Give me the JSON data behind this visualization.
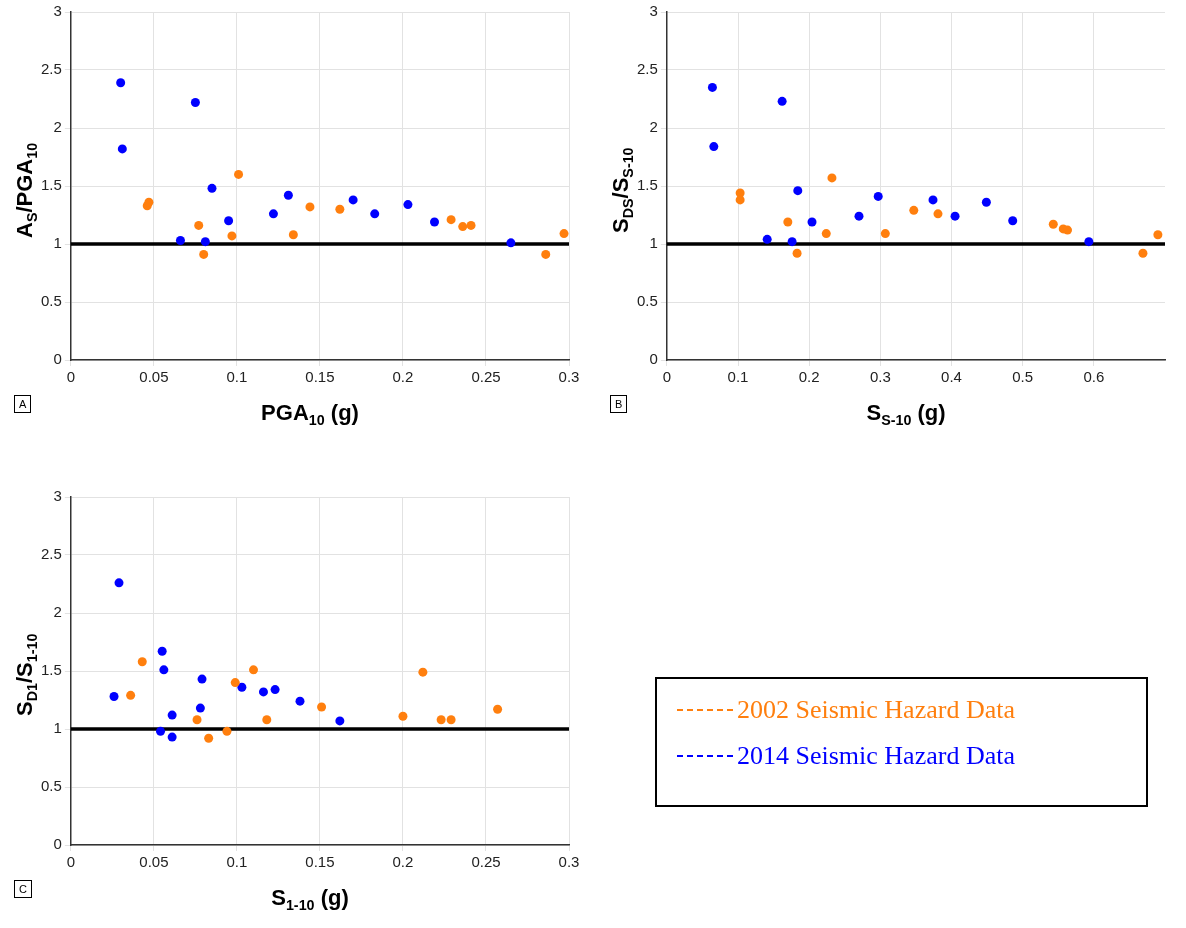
{
  "chart_data": [
    {
      "type": "scatter",
      "xlabel": "PGA$_{10}$ (g)",
      "ylabel": "A$_{S}$/PGA$_{10}$",
      "annotations": [
        "A"
      ],
      "xlim": [
        0,
        0.3
      ],
      "xticks": [
        0,
        0.05,
        0.1,
        0.15,
        0.2,
        0.25,
        0.3
      ],
      "ylim": [
        0,
        3
      ],
      "yticks": [
        0,
        0.5,
        1,
        1.5,
        2,
        2.5,
        3
      ],
      "grid": true,
      "marker": "circle",
      "ref_lines": [
        {
          "axis": "y",
          "value": 1,
          "color": "#000000"
        }
      ],
      "series": [
        {
          "color": "#0000ff",
          "x": [
            0.03,
            0.031,
            0.075,
            0.066,
            0.081,
            0.085,
            0.095,
            0.122,
            0.131,
            0.17,
            0.183,
            0.203,
            0.219,
            0.265
          ],
          "values": [
            2.39,
            1.82,
            2.22,
            1.03,
            1.02,
            1.48,
            1.2,
            1.26,
            1.42,
            1.38,
            1.26,
            1.34,
            1.19,
            1.01
          ]
        },
        {
          "color": "#ff7f0e",
          "x": [
            0.046,
            0.047,
            0.077,
            0.08,
            0.097,
            0.101,
            0.134,
            0.144,
            0.162,
            0.229,
            0.236,
            0.241,
            0.286,
            0.297
          ],
          "values": [
            1.33,
            1.36,
            1.16,
            0.91,
            1.07,
            1.6,
            1.08,
            1.32,
            1.3,
            1.21,
            1.15,
            1.16,
            0.91,
            1.09
          ]
        }
      ]
    },
    {
      "type": "scatter",
      "xlabel": "S$_{S-10}$ (g)",
      "ylabel": "S$_{DS}$/S$_{S-10}$",
      "annotations": [
        "B"
      ],
      "xlim": [
        0,
        0.7
      ],
      "xticks": [
        0,
        0.1,
        0.2,
        0.3,
        0.4,
        0.5,
        0.6
      ],
      "ylim": [
        0,
        3
      ],
      "yticks": [
        0,
        0.5,
        1,
        1.5,
        2,
        2.5,
        3
      ],
      "grid": true,
      "marker": "circle",
      "ref_lines": [
        {
          "axis": "y",
          "value": 1,
          "color": "#000000"
        }
      ],
      "series": [
        {
          "color": "#0000ff",
          "x": [
            0.064,
            0.066,
            0.162,
            0.141,
            0.176,
            0.184,
            0.204,
            0.27,
            0.297,
            0.374,
            0.405,
            0.449,
            0.486,
            0.593
          ],
          "values": [
            2.35,
            1.84,
            2.23,
            1.04,
            1.02,
            1.46,
            1.19,
            1.24,
            1.41,
            1.38,
            1.24,
            1.36,
            1.2,
            1.02
          ]
        },
        {
          "color": "#ff7f0e",
          "x": [
            0.103,
            0.103,
            0.17,
            0.183,
            0.224,
            0.232,
            0.307,
            0.347,
            0.381,
            0.543,
            0.557,
            0.563,
            0.669,
            0.69
          ],
          "values": [
            1.44,
            1.38,
            1.19,
            0.92,
            1.09,
            1.57,
            1.09,
            1.29,
            1.26,
            1.17,
            1.13,
            1.12,
            0.92,
            1.08
          ]
        }
      ]
    },
    {
      "type": "scatter",
      "xlabel": "S$_{1-10}$ (g)",
      "ylabel": "S$_{D1}$/S$_{1-10}$",
      "annotations": [
        "C"
      ],
      "xlim": [
        0,
        0.3
      ],
      "xticks": [
        0,
        0.05,
        0.1,
        0.15,
        0.2,
        0.25,
        0.3
      ],
      "ylim": [
        0,
        3
      ],
      "yticks": [
        0,
        0.5,
        1,
        1.5,
        2,
        2.5,
        3
      ],
      "grid": true,
      "marker": "circle",
      "legend": "right",
      "ref_lines": [
        {
          "axis": "y",
          "value": 1,
          "color": "#000000"
        }
      ],
      "series": [
        {
          "name": "2002 Seismic Hazard Data",
          "color": "#ff7f0e",
          "x": [
            0.043,
            0.036,
            0.076,
            0.083,
            0.094,
            0.099,
            0.11,
            0.118,
            0.151,
            0.2,
            0.212,
            0.223,
            0.229,
            0.257
          ],
          "values": [
            1.58,
            1.29,
            1.08,
            0.92,
            0.98,
            1.4,
            1.51,
            1.08,
            1.19,
            1.11,
            1.49,
            1.08,
            1.08,
            1.17
          ]
        },
        {
          "name": "2014 Seismic Hazard Data",
          "color": "#0000ff",
          "x": [
            0.029,
            0.026,
            0.055,
            0.056,
            0.061,
            0.054,
            0.061,
            0.079,
            0.078,
            0.103,
            0.116,
            0.123,
            0.138,
            0.162
          ],
          "values": [
            2.26,
            1.28,
            1.67,
            1.51,
            1.12,
            0.98,
            0.93,
            1.43,
            1.18,
            1.36,
            1.32,
            1.34,
            1.24,
            1.07
          ]
        }
      ]
    }
  ]
}
